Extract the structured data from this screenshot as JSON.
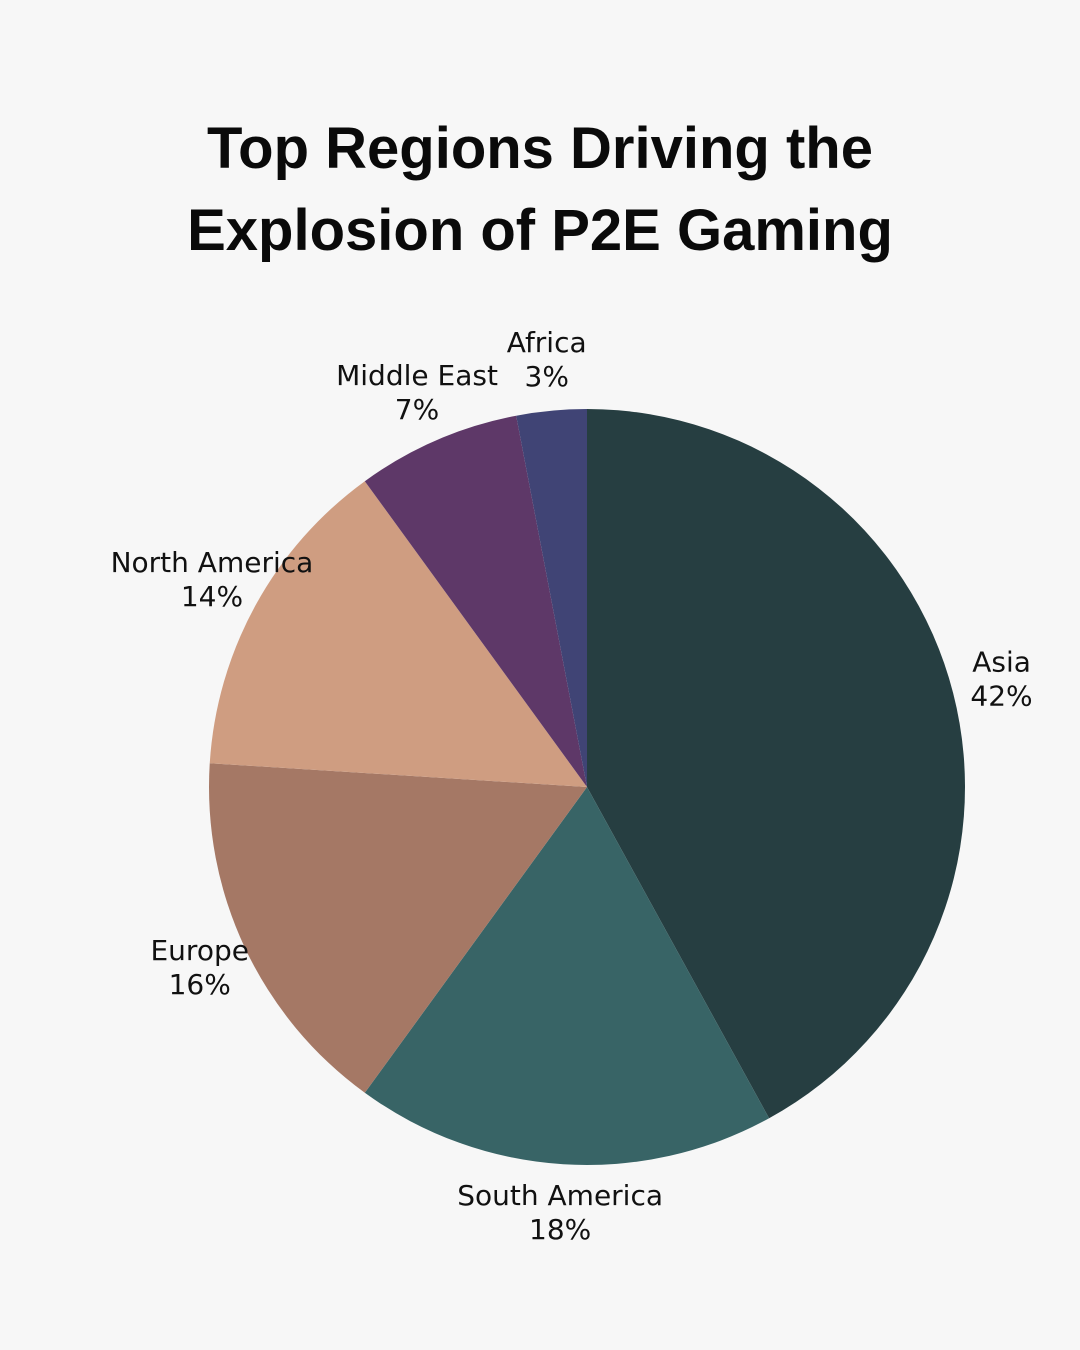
{
  "chart_data": {
    "type": "pie",
    "title": "Top Regions Driving the Explosion of P2E Gaming",
    "categories": [
      "Asia",
      "South America",
      "Europe",
      "North America",
      "Middle East",
      "Africa"
    ],
    "values": [
      42,
      18,
      16,
      14,
      7,
      3
    ],
    "value_labels": [
      "42%",
      "18%",
      "16%",
      "14%",
      "7%",
      "3%"
    ],
    "colors": [
      "#263e41",
      "#386466",
      "#a57865",
      "#cf9d81",
      "#5e3868",
      "#404475"
    ]
  }
}
